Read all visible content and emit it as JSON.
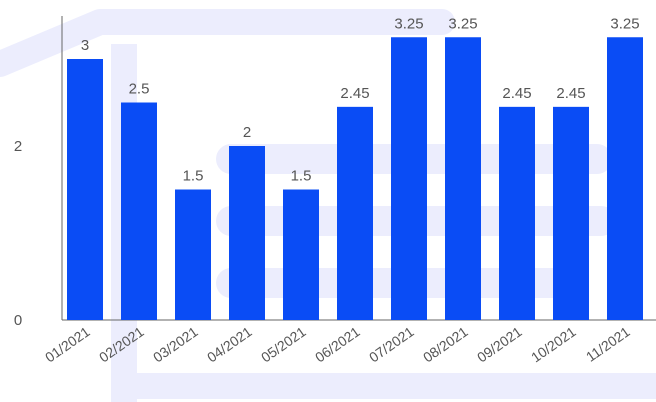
{
  "chart_data": {
    "type": "bar",
    "categories": [
      "01/2021",
      "02/2021",
      "03/2021",
      "04/2021",
      "05/2021",
      "06/2021",
      "07/2021",
      "08/2021",
      "09/2021",
      "10/2021",
      "11/2021"
    ],
    "values": [
      3,
      2.5,
      1.5,
      2,
      1.5,
      2.45,
      3.25,
      3.25,
      2.45,
      2.45,
      3.25
    ],
    "data_labels": [
      "3",
      "2.5",
      "1.5",
      "2",
      "1.5",
      "2.45",
      "3.25",
      "3.25",
      "2.45",
      "2.45",
      "3.25"
    ],
    "y_ticks": [
      0,
      2
    ],
    "y_tick_labels": [
      "0",
      "2"
    ],
    "ylim": [
      0,
      3.6
    ],
    "bar_color": "#0a4cf5",
    "watermark_color": "#ecedfd",
    "title": "",
    "xlabel": "",
    "ylabel": "",
    "grid": false,
    "legend": "none"
  }
}
